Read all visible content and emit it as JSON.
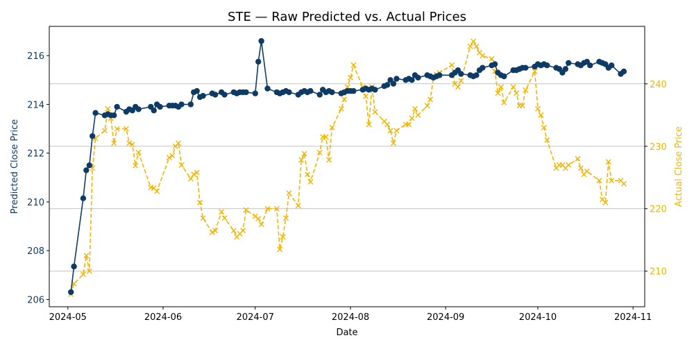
{
  "chart_data": {
    "type": "line",
    "title": "STE — Raw Predicted vs. Actual Prices",
    "xlabel": "Date",
    "ylabel_left": "Predicted Close Price",
    "ylabel_right": "Actual Close Price",
    "x_ticks": [
      "2024-05",
      "2024-06",
      "2024-07",
      "2024-08",
      "2024-09",
      "2024-10",
      "2024-11"
    ],
    "y_left_ticks": [
      "206",
      "208",
      "210",
      "212",
      "214",
      "216"
    ],
    "y_right_ticks": [
      "210",
      "220",
      "230",
      "240"
    ],
    "ylim_left": [
      205.7,
      217.2
    ],
    "ylim_right": [
      204.3,
      249.2
    ],
    "grid": "horizontal (right axis)",
    "colors": {
      "predicted": "#0d3b66",
      "actual": "#f5b400",
      "grid": "#b0b0b0",
      "axis": "#000000"
    },
    "series": [
      {
        "axis": "left",
        "style": "solid-circle",
        "points": [
          [
            "2024-05-02",
            206.3
          ],
          [
            "2024-05-03",
            207.35
          ],
          [
            "2024-05-06",
            210.15
          ],
          [
            "2024-05-07",
            211.3
          ],
          [
            "2024-05-08",
            211.5
          ],
          [
            "2024-05-09",
            212.7
          ],
          [
            "2024-05-10",
            213.65
          ],
          [
            "2024-05-13",
            213.55
          ],
          [
            "2024-05-14",
            213.6
          ],
          [
            "2024-05-15",
            213.55
          ],
          [
            "2024-05-16",
            213.55
          ],
          [
            "2024-05-17",
            213.9
          ],
          [
            "2024-05-20",
            213.7
          ],
          [
            "2024-05-21",
            213.8
          ],
          [
            "2024-05-22",
            213.75
          ],
          [
            "2024-05-23",
            213.9
          ],
          [
            "2024-05-24",
            213.8
          ],
          [
            "2024-05-28",
            213.9
          ],
          [
            "2024-05-29",
            213.75
          ],
          [
            "2024-05-30",
            214.0
          ],
          [
            "2024-05-31",
            213.9
          ],
          [
            "2024-06-03",
            213.95
          ],
          [
            "2024-06-04",
            213.95
          ],
          [
            "2024-06-05",
            213.95
          ],
          [
            "2024-06-06",
            213.9
          ],
          [
            "2024-06-07",
            214.0
          ],
          [
            "2024-06-10",
            214.0
          ],
          [
            "2024-06-11",
            214.5
          ],
          [
            "2024-06-12",
            214.55
          ],
          [
            "2024-06-13",
            214.3
          ],
          [
            "2024-06-14",
            214.35
          ],
          [
            "2024-06-17",
            214.45
          ],
          [
            "2024-06-18",
            214.4
          ],
          [
            "2024-06-20",
            214.5
          ],
          [
            "2024-06-21",
            214.4
          ],
          [
            "2024-06-24",
            214.5
          ],
          [
            "2024-06-25",
            214.45
          ],
          [
            "2024-06-26",
            214.5
          ],
          [
            "2024-06-27",
            214.5
          ],
          [
            "2024-06-28",
            214.5
          ],
          [
            "2024-07-01",
            214.45
          ],
          [
            "2024-07-02",
            215.75
          ],
          [
            "2024-07-03",
            216.6
          ],
          [
            "2024-07-05",
            214.65
          ],
          [
            "2024-07-08",
            214.5
          ],
          [
            "2024-07-09",
            214.45
          ],
          [
            "2024-07-10",
            214.5
          ],
          [
            "2024-07-11",
            214.55
          ],
          [
            "2024-07-12",
            214.5
          ],
          [
            "2024-07-15",
            214.4
          ],
          [
            "2024-07-16",
            214.5
          ],
          [
            "2024-07-17",
            214.55
          ],
          [
            "2024-07-18",
            214.5
          ],
          [
            "2024-07-19",
            214.55
          ],
          [
            "2024-07-22",
            214.4
          ],
          [
            "2024-07-23",
            214.6
          ],
          [
            "2024-07-24",
            214.5
          ],
          [
            "2024-07-25",
            214.55
          ],
          [
            "2024-07-26",
            214.5
          ],
          [
            "2024-07-29",
            214.45
          ],
          [
            "2024-07-30",
            214.5
          ],
          [
            "2024-07-31",
            214.55
          ],
          [
            "2024-08-01",
            214.55
          ],
          [
            "2024-08-02",
            214.55
          ],
          [
            "2024-08-05",
            214.6
          ],
          [
            "2024-08-06",
            214.65
          ],
          [
            "2024-08-07",
            214.6
          ],
          [
            "2024-08-08",
            214.65
          ],
          [
            "2024-08-09",
            214.6
          ],
          [
            "2024-08-12",
            214.75
          ],
          [
            "2024-08-13",
            214.8
          ],
          [
            "2024-08-14",
            215.0
          ],
          [
            "2024-08-15",
            214.85
          ],
          [
            "2024-08-16",
            215.05
          ],
          [
            "2024-08-19",
            215.0
          ],
          [
            "2024-08-20",
            215.05
          ],
          [
            "2024-08-21",
            215.0
          ],
          [
            "2024-08-22",
            215.2
          ],
          [
            "2024-08-23",
            215.1
          ],
          [
            "2024-08-26",
            215.2
          ],
          [
            "2024-08-27",
            215.15
          ],
          [
            "2024-08-28",
            215.1
          ],
          [
            "2024-08-29",
            215.15
          ],
          [
            "2024-08-30",
            215.2
          ],
          [
            "2024-09-03",
            215.2
          ],
          [
            "2024-09-04",
            215.3
          ],
          [
            "2024-09-05",
            215.4
          ],
          [
            "2024-09-06",
            215.25
          ],
          [
            "2024-09-09",
            215.2
          ],
          [
            "2024-09-10",
            215.15
          ],
          [
            "2024-09-11",
            215.2
          ],
          [
            "2024-09-12",
            215.4
          ],
          [
            "2024-09-13",
            215.5
          ],
          [
            "2024-09-16",
            215.6
          ],
          [
            "2024-09-17",
            215.65
          ],
          [
            "2024-09-18",
            215.3
          ],
          [
            "2024-09-19",
            215.2
          ],
          [
            "2024-09-20",
            215.15
          ],
          [
            "2024-09-23",
            215.4
          ],
          [
            "2024-09-24",
            215.4
          ],
          [
            "2024-09-25",
            215.45
          ],
          [
            "2024-09-26",
            215.5
          ],
          [
            "2024-09-27",
            215.5
          ],
          [
            "2024-09-30",
            215.55
          ],
          [
            "2024-10-01",
            215.65
          ],
          [
            "2024-10-02",
            215.6
          ],
          [
            "2024-10-03",
            215.65
          ],
          [
            "2024-10-04",
            215.6
          ],
          [
            "2024-10-07",
            215.5
          ],
          [
            "2024-10-08",
            215.45
          ],
          [
            "2024-10-09",
            215.3
          ],
          [
            "2024-10-10",
            215.45
          ],
          [
            "2024-10-11",
            215.7
          ],
          [
            "2024-10-14",
            215.65
          ],
          [
            "2024-10-15",
            215.6
          ],
          [
            "2024-10-16",
            215.7
          ],
          [
            "2024-10-17",
            215.75
          ],
          [
            "2024-10-18",
            215.6
          ],
          [
            "2024-10-21",
            215.75
          ],
          [
            "2024-10-22",
            215.7
          ],
          [
            "2024-10-23",
            215.65
          ],
          [
            "2024-10-24",
            215.5
          ],
          [
            "2024-10-25",
            215.6
          ],
          [
            "2024-10-28",
            215.25
          ],
          [
            "2024-10-29",
            215.35
          ]
        ]
      },
      {
        "axis": "right",
        "style": "dashed-x",
        "points": [
          [
            "2024-05-02",
            206.3
          ],
          [
            "2024-05-03",
            208.0
          ],
          [
            "2024-05-06",
            209.5
          ],
          [
            "2024-05-07",
            212.5
          ],
          [
            "2024-05-08",
            210.0
          ],
          [
            "2024-05-09",
            226.5
          ],
          [
            "2024-05-10",
            231.3
          ],
          [
            "2024-05-13",
            232.5
          ],
          [
            "2024-05-14",
            236.0
          ],
          [
            "2024-05-15",
            234.5
          ],
          [
            "2024-05-16",
            230.5
          ],
          [
            "2024-05-17",
            232.8
          ],
          [
            "2024-05-20",
            232.8
          ],
          [
            "2024-05-21",
            230.5
          ],
          [
            "2024-05-22",
            230.3
          ],
          [
            "2024-05-23",
            226.9
          ],
          [
            "2024-05-24",
            229.0
          ],
          [
            "2024-05-28",
            223.4
          ],
          [
            "2024-05-29",
            223.3
          ],
          [
            "2024-05-30",
            222.8
          ],
          [
            "2024-06-03",
            228.2
          ],
          [
            "2024-06-04",
            228.5
          ],
          [
            "2024-06-05",
            230.0
          ],
          [
            "2024-06-06",
            230.5
          ],
          [
            "2024-06-07",
            227.0
          ],
          [
            "2024-06-10",
            224.8
          ],
          [
            "2024-06-11",
            225.5
          ],
          [
            "2024-06-12",
            225.8
          ],
          [
            "2024-06-13",
            221.0
          ],
          [
            "2024-06-14",
            218.5
          ],
          [
            "2024-06-17",
            216.2
          ],
          [
            "2024-06-18",
            216.5
          ],
          [
            "2024-06-20",
            219.5
          ],
          [
            "2024-06-21",
            218.5
          ],
          [
            "2024-06-24",
            216.5
          ],
          [
            "2024-06-25",
            215.5
          ],
          [
            "2024-06-26",
            216.0
          ],
          [
            "2024-06-27",
            216.5
          ],
          [
            "2024-06-28",
            219.8
          ],
          [
            "2024-07-01",
            218.8
          ],
          [
            "2024-07-02",
            218.4
          ],
          [
            "2024-07-03",
            217.5
          ],
          [
            "2024-07-05",
            220.0
          ],
          [
            "2024-07-08",
            220.0
          ],
          [
            "2024-07-09",
            213.5
          ],
          [
            "2024-07-10",
            215.5
          ],
          [
            "2024-07-11",
            218.5
          ],
          [
            "2024-07-12",
            222.5
          ],
          [
            "2024-07-15",
            220.5
          ],
          [
            "2024-07-16",
            227.8
          ],
          [
            "2024-07-17",
            228.8
          ],
          [
            "2024-07-18",
            225.5
          ],
          [
            "2024-07-19",
            224.3
          ],
          [
            "2024-07-22",
            229.0
          ],
          [
            "2024-07-23",
            231.5
          ],
          [
            "2024-07-24",
            231.5
          ],
          [
            "2024-07-25",
            227.8
          ],
          [
            "2024-07-26",
            233.0
          ],
          [
            "2024-07-29",
            236.0
          ],
          [
            "2024-07-30",
            237.5
          ],
          [
            "2024-07-31",
            239.5
          ],
          [
            "2024-08-01",
            241.0
          ],
          [
            "2024-08-02",
            243.0
          ],
          [
            "2024-08-05",
            239.5
          ],
          [
            "2024-08-06",
            238.0
          ],
          [
            "2024-08-07",
            233.5
          ],
          [
            "2024-08-08",
            239.5
          ],
          [
            "2024-08-09",
            235.5
          ],
          [
            "2024-08-12",
            234.0
          ],
          [
            "2024-08-13",
            233.5
          ],
          [
            "2024-08-14",
            232.5
          ],
          [
            "2024-08-15",
            230.5
          ],
          [
            "2024-08-16",
            232.5
          ],
          [
            "2024-08-19",
            233.5
          ],
          [
            "2024-08-20",
            233.5
          ],
          [
            "2024-08-21",
            234.5
          ],
          [
            "2024-08-22",
            236.0
          ],
          [
            "2024-08-23",
            235.0
          ],
          [
            "2024-08-26",
            236.5
          ],
          [
            "2024-08-27",
            237.5
          ],
          [
            "2024-08-28",
            241.0
          ],
          [
            "2024-08-29",
            241.5
          ],
          [
            "2024-08-30",
            241.8
          ],
          [
            "2024-09-03",
            243.0
          ],
          [
            "2024-09-04",
            240.0
          ],
          [
            "2024-09-05",
            239.5
          ],
          [
            "2024-09-06",
            240.5
          ],
          [
            "2024-09-09",
            246.0
          ],
          [
            "2024-09-10",
            246.8
          ],
          [
            "2024-09-11",
            246.0
          ],
          [
            "2024-09-12",
            245.0
          ],
          [
            "2024-09-13",
            244.5
          ],
          [
            "2024-09-16",
            244.0
          ],
          [
            "2024-09-17",
            242.0
          ],
          [
            "2024-09-18",
            238.5
          ],
          [
            "2024-09-19",
            239.5
          ],
          [
            "2024-09-20",
            237.0
          ],
          [
            "2024-09-23",
            239.5
          ],
          [
            "2024-09-24",
            238.5
          ],
          [
            "2024-09-25",
            236.5
          ],
          [
            "2024-09-26",
            236.5
          ],
          [
            "2024-09-27",
            239.0
          ],
          [
            "2024-09-30",
            242.0
          ],
          [
            "2024-10-01",
            236.0
          ],
          [
            "2024-10-02",
            235.0
          ],
          [
            "2024-10-03",
            233.0
          ],
          [
            "2024-10-04",
            231.0
          ],
          [
            "2024-10-07",
            226.5
          ],
          [
            "2024-10-08",
            227.0
          ],
          [
            "2024-10-09",
            227.0
          ],
          [
            "2024-10-10",
            226.5
          ],
          [
            "2024-10-11",
            227.0
          ],
          [
            "2024-10-14",
            228.0
          ],
          [
            "2024-10-15",
            226.5
          ],
          [
            "2024-10-16",
            225.5
          ],
          [
            "2024-10-17",
            226.0
          ],
          [
            "2024-10-21",
            224.5
          ],
          [
            "2024-10-22",
            221.5
          ],
          [
            "2024-10-23",
            221.0
          ],
          [
            "2024-10-24",
            227.5
          ],
          [
            "2024-10-25",
            224.5
          ],
          [
            "2024-10-28",
            224.5
          ],
          [
            "2024-10-29",
            224.0
          ]
        ]
      }
    ]
  }
}
